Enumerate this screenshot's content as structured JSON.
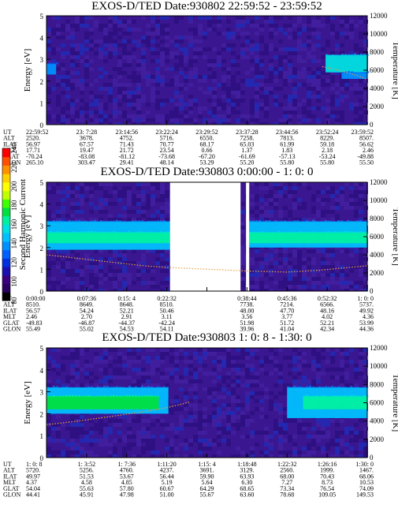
{
  "colorbar": {
    "label": "Second Harmonic Current",
    "ticks": [
      "240",
      "220",
      "200",
      "180",
      "160",
      "140",
      "120",
      "100",
      "80"
    ],
    "colors": [
      "#000000",
      "#2a0060",
      "#3a007f",
      "#1a10b0",
      "#0030e0",
      "#0060ff",
      "#0090ff",
      "#00c0ff",
      "#00e0e0",
      "#00f0a0",
      "#00e040",
      "#40ff00",
      "#c0ff00",
      "#ffff00",
      "#ffd000",
      "#ff9000",
      "#ff5000",
      "#ff0000"
    ]
  },
  "panels": [
    {
      "title": "EXOS-D/TED    Date:930802  22:59:52 - 23:59:52",
      "ylabel": "Energy [eV]",
      "y2label": "Temperature [K]",
      "yticks": [
        "0",
        "1",
        "2",
        "3",
        "4",
        "5"
      ],
      "y2ticks": [
        "0",
        "2000",
        "4000",
        "6000",
        "8000",
        "10000",
        "12000"
      ],
      "ephem_labels": [
        "UT",
        "ALT",
        "ILAT",
        "MLT",
        "GLAT",
        "GLON"
      ],
      "ephem": [
        [
          "22:59:52",
          "2520.",
          "56.97",
          "17.71",
          "-70.24",
          "265.10"
        ],
        [
          "23: 7:28",
          "3678.",
          "67.57",
          "19.47",
          "-83.08",
          "303.47"
        ],
        [
          "23:14:56",
          "4752.",
          "71.43",
          "21.72",
          "-81.12",
          "29.41"
        ],
        [
          "23:22:24",
          "5716.",
          "70.77",
          "23.54",
          "-73.68",
          "48.14"
        ],
        [
          "23:29:52",
          "6550.",
          "68.17",
          "0.66",
          "-67.20",
          "53.29"
        ],
        [
          "23:37:28",
          "7258.",
          "65.03",
          "1.37",
          "-61.69",
          "55.20"
        ],
        [
          "23:44:56",
          "7813.",
          "61.99",
          "1.83",
          "-57.13",
          "55.80"
        ],
        [
          "23:52:24",
          "8229.",
          "59.18",
          "2.18",
          "-53.24",
          "55.80"
        ],
        [
          "23:59:52",
          "8507.",
          "56.62",
          "2.46",
          "-49.88",
          "55.50"
        ]
      ]
    },
    {
      "title": "EXOS-D/TED    Date:930803  0:00:00 - 1: 0: 0",
      "ylabel": "Energy [eV]",
      "y2label": "Temperature [K]",
      "yticks": [
        "0",
        "1",
        "2",
        "3",
        "4",
        "5"
      ],
      "y2ticks": [
        "0",
        "2000",
        "4000",
        "6000",
        "8000",
        "10000",
        "12000"
      ],
      "ephem_labels": [
        "UT",
        "ALT",
        "ILAT",
        "MLT",
        "GLAT",
        "GLON"
      ],
      "ephem": [
        [
          "0:00:00",
          "8510.",
          "56.57",
          "2.46",
          "-49.83",
          "55.49"
        ],
        [
          "0:07:36",
          "8649.",
          "54.24",
          "2.70",
          "-46.87",
          "55.02"
        ],
        [
          "0:15: 4",
          "8648.",
          "52.21",
          "2.91",
          "-44.37",
          "54.53"
        ],
        [
          "0:22:32",
          "8510.",
          "50.46",
          "3.11",
          "-42.24",
          "54.11"
        ],
        [
          "",
          "",
          "",
          "",
          "",
          ""
        ],
        [
          "0:38:44",
          "7738.",
          "48.00",
          "3.56",
          "51.98",
          "39.96"
        ],
        [
          "0:45:36",
          "7214.",
          "47.70",
          "3.77",
          "51.72",
          "41.04"
        ],
        [
          "0:52:32",
          "6566.",
          "48.16",
          "4.02",
          "52.21",
          "42.34"
        ],
        [
          "1: 0: 0",
          "5737.",
          "49.92",
          "4.36",
          "53.99",
          "44.36"
        ]
      ]
    },
    {
      "title": "EXOS-D/TED    Date:930803  1: 0: 8 - 1:30: 0",
      "ylabel": "Energy [eV]",
      "y2label": "Temperature [K]",
      "yticks": [
        "0",
        "1",
        "2",
        "3",
        "4",
        "5"
      ],
      "y2ticks": [
        "0",
        "2000",
        "4000",
        "6000",
        "8000",
        "10000",
        "12000"
      ],
      "ephem_labels": [
        "UT",
        "ALT",
        "ILAT",
        "MLT",
        "GLAT",
        "GLON"
      ],
      "ephem": [
        [
          "1: 0: 8",
          "5720.",
          "49.97",
          "4.37",
          "54.04",
          "44.41"
        ],
        [
          "1: 3:52",
          "5256.",
          "51.53",
          "4.58",
          "55.63",
          "45.91"
        ],
        [
          "1: 7:36",
          "4760.",
          "53.67",
          "4.85",
          "57.80",
          "47.98"
        ],
        [
          "1:11:20",
          "4237.",
          "56.44",
          "5.19",
          "60.67",
          "51.00"
        ],
        [
          "1:15: 4",
          "3691.",
          "59.90",
          "5.64",
          "64.29",
          "55.67"
        ],
        [
          "1:18:48",
          "3129.",
          "63.93",
          "6.30",
          "68.65",
          "63.60"
        ],
        [
          "1:22:32",
          "2560.",
          "68.00",
          "7.27",
          "73.34",
          "78.68"
        ],
        [
          "1:26:16",
          "1999.",
          "70.43",
          "8.73",
          "76.54",
          "109.05"
        ],
        [
          "1:30: 0",
          "1467.",
          "68.06",
          "10.53",
          "74.09",
          "149.53"
        ]
      ]
    }
  ],
  "chart_data": [
    {
      "type": "heatmap",
      "title": "EXOS-D/TED    Date:930802  22:59:52 - 23:59:52",
      "ylabel": "Energy [eV]",
      "y2label": "Temperature [K]",
      "ylim": [
        0,
        5
      ],
      "y2lim": [
        0,
        12000
      ],
      "x_ticks": [
        "22:59:52",
        "23: 7:28",
        "23:14:56",
        "23:22:24",
        "23:29:52",
        "23:37:28",
        "23:44:56",
        "23:52:24",
        "23:59:52"
      ],
      "gaps": [],
      "bands": [
        {
          "x": [
            0.0,
            0.03
          ],
          "y": [
            2.3,
            2.8
          ],
          "level": 6
        },
        {
          "x": [
            0.87,
            1.0
          ],
          "y": [
            2.4,
            3.2
          ],
          "level": 8
        },
        {
          "x": [
            0.92,
            1.0
          ],
          "y": [
            2.1,
            2.4
          ],
          "level": 6
        }
      ],
      "series": [
        {
          "name": "",
          "x": [
            0.86,
            0.9,
            0.94,
            0.97,
            1.0
          ],
          "y": [
            6400,
            6100,
            5700,
            5400,
            5000
          ]
        }
      ]
    },
    {
      "type": "heatmap",
      "title": "EXOS-D/TED    Date:930803  0:00:00 - 1: 0: 0",
      "ylabel": "Energy [eV]",
      "y2label": "Temperature [K]",
      "ylim": [
        0,
        5
      ],
      "y2lim": [
        0,
        12000
      ],
      "x_ticks": [
        "0:00:00",
        "0:07:36",
        "0:15: 4",
        "0:22:32",
        "",
        "0:38:44",
        "0:45:36",
        "0:52:32",
        "1: 0: 0"
      ],
      "gaps": [
        [
          0.385,
          0.605
        ],
        [
          0.622,
          0.632
        ]
      ],
      "bands": [
        {
          "x": [
            0.0,
            0.385
          ],
          "y": [
            1.9,
            3.2
          ],
          "level": 7
        },
        {
          "x": [
            0.0,
            0.385
          ],
          "y": [
            2.2,
            2.7
          ],
          "level": 9
        },
        {
          "x": [
            0.632,
            1.0
          ],
          "y": [
            2.0,
            3.2
          ],
          "level": 7
        },
        {
          "x": [
            0.632,
            1.0
          ],
          "y": [
            2.2,
            2.7
          ],
          "level": 9
        }
      ],
      "series": [
        {
          "name": "",
          "x": [
            0.0,
            0.1,
            0.2,
            0.3,
            0.38,
            0.64,
            0.75,
            0.85,
            1.0
          ],
          "y": [
            4000,
            3600,
            3200,
            2800,
            2600,
            2200,
            2100,
            2300,
            2800
          ]
        }
      ]
    },
    {
      "type": "heatmap",
      "title": "EXOS-D/TED    Date:930803  1: 0: 8 - 1:30: 0",
      "ylabel": "Energy [eV]",
      "y2label": "Temperature [K]",
      "ylim": [
        0,
        5
      ],
      "y2lim": [
        0,
        12000
      ],
      "x_ticks": [
        "1: 0: 8",
        "1: 3:52",
        "1: 7:36",
        "1:11:20",
        "1:15: 4",
        "1:18:48",
        "1:22:32",
        "1:26:16",
        "1:30: 0"
      ],
      "gaps": [],
      "bands": [
        {
          "x": [
            0.0,
            0.38
          ],
          "y": [
            2.0,
            3.2
          ],
          "level": 7
        },
        {
          "x": [
            0.0,
            0.35
          ],
          "y": [
            2.2,
            2.8
          ],
          "level": 10
        },
        {
          "x": [
            0.75,
            1.0
          ],
          "y": [
            1.8,
            3.2
          ],
          "level": 7
        },
        {
          "x": [
            0.8,
            1.0
          ],
          "y": [
            2.2,
            2.8
          ],
          "level": 9
        }
      ],
      "series": [
        {
          "name": "",
          "x": [
            0.0,
            0.1,
            0.2,
            0.3,
            0.38,
            0.45
          ],
          "y": [
            3600,
            4000,
            4500,
            5000,
            5500,
            6100
          ]
        }
      ]
    }
  ]
}
